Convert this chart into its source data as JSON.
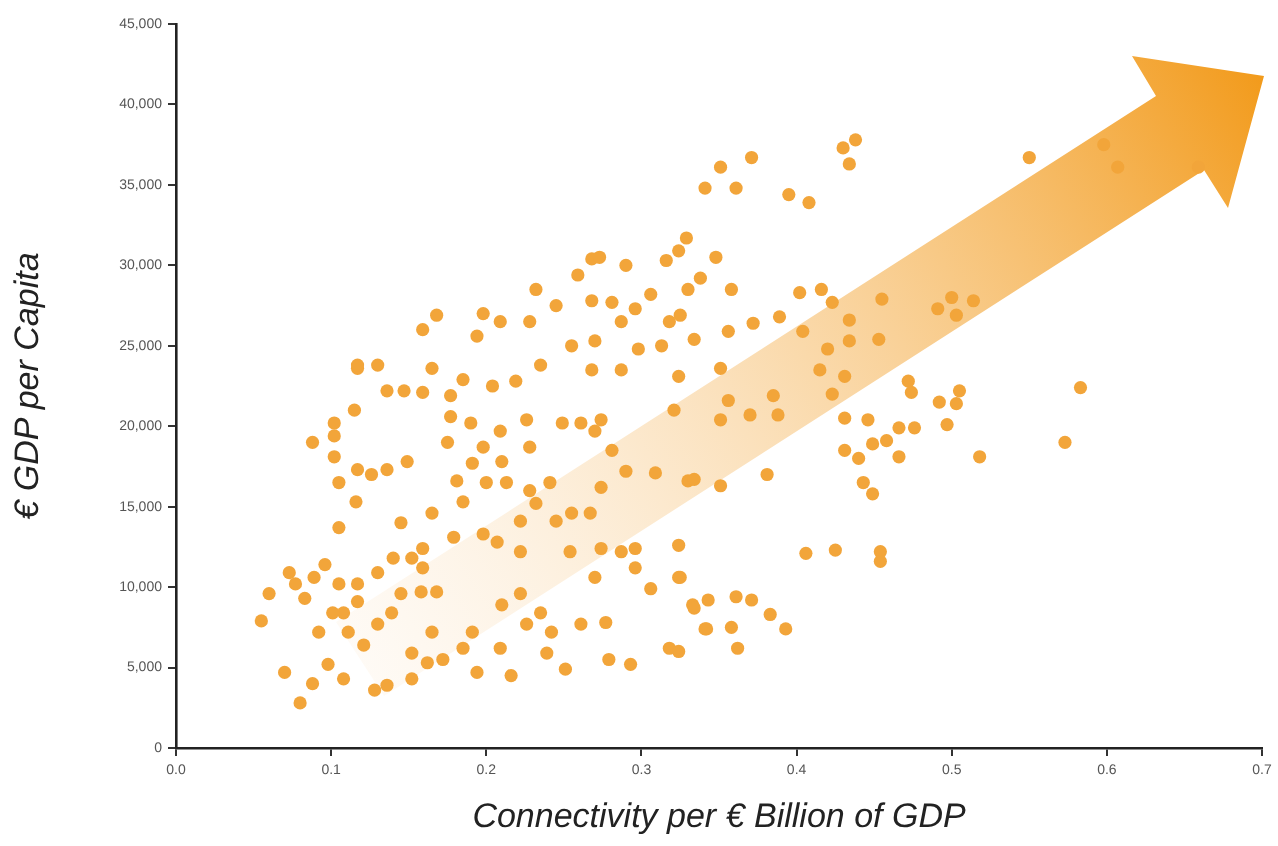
{
  "chart_data": {
    "type": "scatter",
    "xlabel": "Connectivity per € Billion of GDP",
    "ylabel": "€ GDP per Capita",
    "xlim": [
      0,
      0.7
    ],
    "ylim": [
      0,
      45000
    ],
    "xticks": [
      {
        "value": 0,
        "label": "0.0"
      },
      {
        "value": 0.1,
        "label": "0.1"
      },
      {
        "value": 0.2,
        "label": "0.2"
      },
      {
        "value": 0.3,
        "label": "0.3"
      },
      {
        "value": 0.4,
        "label": "0.4"
      },
      {
        "value": 0.5,
        "label": "0.5"
      },
      {
        "value": 0.6,
        "label": "0.6"
      },
      {
        "value": 0.7,
        "label": "0.7"
      }
    ],
    "yticks": [
      {
        "value": 0,
        "label": "0"
      },
      {
        "value": 5000,
        "label": "5,000"
      },
      {
        "value": 10000,
        "label": "10,000"
      },
      {
        "value": 15000,
        "label": "15,000"
      },
      {
        "value": 20000,
        "label": "20,000"
      },
      {
        "value": 25000,
        "label": "25,000"
      },
      {
        "value": 30000,
        "label": "30,000"
      },
      {
        "value": 35000,
        "label": "35,000"
      },
      {
        "value": 40000,
        "label": "40,000"
      },
      {
        "value": 45000,
        "label": "45,000"
      }
    ],
    "grid": false,
    "legend": false,
    "marker": "circle",
    "series": [
      {
        "color": "#f2a53a",
        "x": [
          0.055,
          0.06,
          0.07,
          0.08,
          0.088,
          0.077,
          0.089,
          0.096,
          0.105,
          0.105,
          0.116,
          0.102,
          0.088,
          0.102,
          0.102,
          0.117,
          0.126,
          0.136,
          0.149,
          0.115,
          0.117,
          0.13,
          0.136,
          0.147,
          0.159,
          0.165,
          0.177,
          0.177,
          0.185,
          0.19,
          0.204,
          0.219,
          0.209,
          0.198,
          0.226,
          0.175,
          0.191,
          0.21,
          0.228,
          0.235,
          0.268,
          0.287,
          0.2,
          0.213,
          0.228,
          0.241,
          0.181,
          0.185,
          0.165,
          0.145,
          0.159,
          0.179,
          0.198,
          0.207,
          0.222,
          0.232,
          0.222,
          0.245,
          0.255,
          0.267,
          0.254,
          0.274,
          0.287,
          0.296,
          0.274,
          0.29,
          0.309,
          0.33,
          0.321,
          0.324,
          0.249,
          0.261,
          0.27,
          0.274,
          0.281,
          0.27,
          0.296,
          0.306,
          0.324,
          0.333,
          0.341,
          0.318,
          0.293,
          0.279,
          0.277,
          0.261,
          0.242,
          0.235,
          0.222,
          0.21,
          0.226,
          0.239,
          0.251,
          0.216,
          0.209,
          0.191,
          0.194,
          0.185,
          0.172,
          0.165,
          0.162,
          0.152,
          0.152,
          0.136,
          0.128,
          0.108,
          0.098,
          0.092,
          0.111,
          0.121,
          0.13,
          0.139,
          0.117,
          0.108,
          0.105,
          0.117,
          0.13,
          0.14,
          0.152,
          0.159,
          0.168,
          0.158,
          0.145,
          0.083,
          0.073,
          0.101,
          0.341,
          0.329,
          0.268,
          0.273,
          0.259,
          0.29,
          0.316,
          0.324,
          0.232,
          0.245,
          0.268,
          0.281,
          0.296,
          0.306,
          0.198,
          0.209,
          0.228,
          0.287,
          0.318,
          0.33,
          0.168,
          0.159,
          0.194,
          0.255,
          0.27,
          0.298,
          0.313,
          0.117,
          0.371,
          0.351,
          0.361,
          0.395,
          0.408,
          0.43,
          0.438,
          0.434,
          0.348,
          0.358,
          0.338,
          0.325,
          0.334,
          0.356,
          0.372,
          0.389,
          0.402,
          0.416,
          0.423,
          0.434,
          0.455,
          0.404,
          0.42,
          0.434,
          0.453,
          0.491,
          0.503,
          0.514,
          0.5,
          0.55,
          0.598,
          0.607,
          0.659,
          0.351,
          0.356,
          0.37,
          0.388,
          0.385,
          0.351,
          0.415,
          0.431,
          0.423,
          0.431,
          0.446,
          0.472,
          0.474,
          0.492,
          0.503,
          0.505,
          0.497,
          0.466,
          0.476,
          0.458,
          0.449,
          0.431,
          0.44,
          0.466,
          0.518,
          0.573,
          0.583,
          0.443,
          0.449,
          0.381,
          0.351,
          0.334,
          0.406,
          0.425,
          0.454,
          0.454,
          0.324,
          0.325,
          0.334,
          0.343,
          0.361,
          0.371,
          0.383,
          0.393,
          0.342,
          0.358,
          0.362,
          0.324
        ],
        "values": [
          7900,
          9600,
          4700,
          2800,
          4000,
          10200,
          10600,
          11400,
          13700,
          16500,
          15300,
          18100,
          19000,
          19400,
          20200,
          17300,
          17000,
          17300,
          17800,
          21000,
          23600,
          23800,
          22200,
          22200,
          22100,
          23600,
          21900,
          20600,
          22900,
          20200,
          22500,
          22800,
          19700,
          18700,
          20400,
          19000,
          17700,
          17800,
          18700,
          23800,
          23500,
          23500,
          16500,
          16500,
          16000,
          16500,
          16600,
          15300,
          14600,
          14000,
          12400,
          13100,
          13300,
          12800,
          14100,
          15200,
          12200,
          14100,
          14600,
          14600,
          12200,
          12400,
          12200,
          12400,
          16200,
          17200,
          17100,
          16600,
          21000,
          23100,
          20200,
          20200,
          19700,
          20400,
          18500,
          10600,
          11200,
          9900,
          10600,
          8900,
          7400,
          6200,
          5200,
          5500,
          7800,
          7700,
          7200,
          8400,
          9600,
          8900,
          7700,
          5900,
          4900,
          4500,
          6200,
          7200,
          4700,
          6200,
          5500,
          7200,
          5300,
          5900,
          4300,
          3900,
          3600,
          4300,
          5200,
          7200,
          7200,
          6400,
          7700,
          8400,
          9100,
          8400,
          10200,
          10200,
          10900,
          11800,
          11800,
          11200,
          9700,
          9700,
          9600,
          9300,
          10900,
          8400,
          34800,
          31700,
          30400,
          30500,
          29400,
          30000,
          30300,
          30900,
          28500,
          27500,
          27800,
          27700,
          27300,
          28200,
          27000,
          26500,
          26500,
          26500,
          26500,
          28500,
          26900,
          26000,
          25600,
          25000,
          25300,
          24800,
          25000,
          23800,
          36700,
          36100,
          34800,
          34400,
          33900,
          37300,
          37800,
          36300,
          30500,
          28500,
          29200,
          26900,
          25400,
          25900,
          26400,
          26800,
          28300,
          28500,
          27700,
          26600,
          27900,
          25900,
          24800,
          25300,
          25400,
          27300,
          26900,
          27800,
          28000,
          36700,
          37500,
          36100,
          36100,
          23600,
          21600,
          20700,
          20700,
          21900,
          20400,
          23500,
          23100,
          22000,
          20500,
          20400,
          22800,
          22100,
          21500,
          21400,
          22200,
          20100,
          19900,
          19900,
          19100,
          18900,
          18500,
          18000,
          18100,
          18100,
          19000,
          22400,
          16500,
          15800,
          17000,
          16300,
          16700,
          12100,
          12300,
          12200,
          11600,
          12600,
          10600,
          8700,
          9200,
          9400,
          9200,
          8300,
          7400,
          7400,
          7500,
          6200,
          6000
        ]
      }
    ]
  }
}
